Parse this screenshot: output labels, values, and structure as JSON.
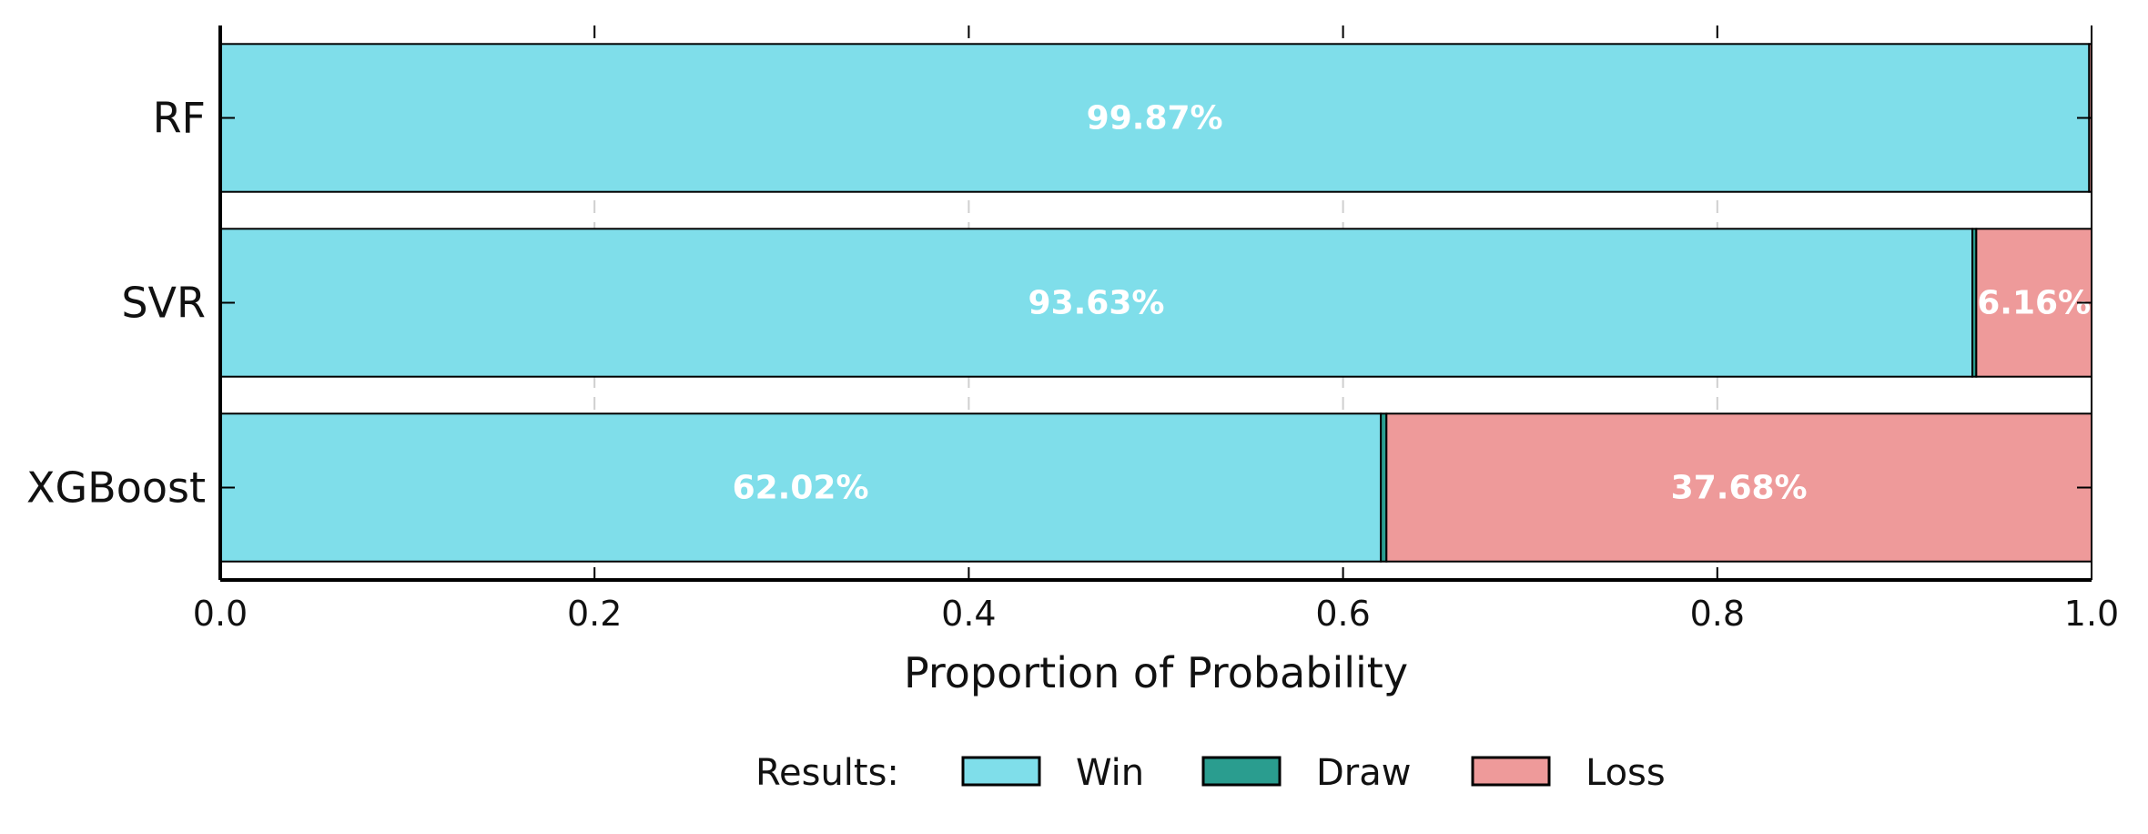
{
  "chart_data": {
    "type": "bar",
    "orientation": "horizontal",
    "stacked": true,
    "categories": [
      "RF",
      "SVR",
      "XGBoost"
    ],
    "series": [
      {
        "name": "Win",
        "values": [
          0.9987,
          0.9363,
          0.6202
        ],
        "color": "#7fdeea",
        "labels": [
          "99.87%",
          "93.63%",
          "62.02%"
        ]
      },
      {
        "name": "Draw",
        "values": [
          0.0,
          0.0021,
          0.003
        ],
        "color": "#2a9d8f",
        "labels": [
          "",
          "",
          ""
        ]
      },
      {
        "name": "Loss",
        "values": [
          0.0013,
          0.0616,
          0.3768
        ],
        "color": "#ee9a9a",
        "labels": [
          "",
          "6.16%",
          "37.68%"
        ]
      }
    ],
    "xlabel": "Proportion of Probability",
    "ylabel": "",
    "xlim": [
      0,
      1
    ],
    "xticks": [
      "0.0",
      "0.2",
      "0.4",
      "0.6",
      "0.8",
      "1.0"
    ],
    "grid": "vertical dashed",
    "legend": {
      "title": "Results:",
      "position": "bottom-center"
    }
  }
}
